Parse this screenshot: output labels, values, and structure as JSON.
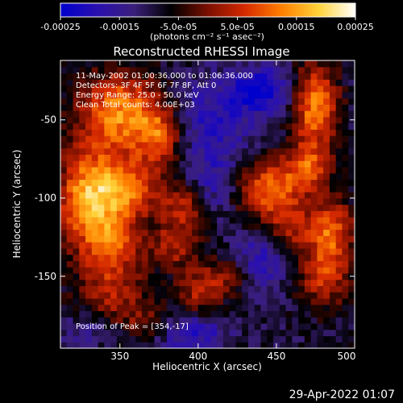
{
  "colorbar": {
    "ticks": [
      "-0.00025",
      "-0.00015",
      "-5.0e-05",
      "5.0e-05",
      "0.00015",
      "0.00025"
    ],
    "unit_label": "(photons cm⁻² s⁻¹ asec⁻²)",
    "range": [
      -0.00025,
      0.00025
    ],
    "colormap": [
      "#0000cc",
      "#2a10b0",
      "#3b1f7a",
      "#000000",
      "#7a0f00",
      "#d62a00",
      "#ff7f00",
      "#ffd23a",
      "#ffffff"
    ]
  },
  "chart_data": {
    "type": "heatmap",
    "title": "Reconstructed RHESSI Image",
    "xlabel": "Heliocentric X (arcsec)",
    "ylabel": "Heliocentric Y (arcsec)",
    "xlim": [
      312,
      500
    ],
    "ylim": [
      -196,
      -12
    ],
    "x_ticks": [
      "350",
      "400",
      "450",
      "500"
    ],
    "y_ticks": [
      "-50",
      "-100",
      "-150"
    ],
    "annotations": [
      "11-May-2002 01:00:36.000 to 01:06:36.000",
      "Detectors: 3F 4F 5F 6F 7F 8F, Att 0",
      "Energy Range: 25.0 - 50.0 keV",
      "Clean     Total counts: 4.00E+03"
    ],
    "peak_text": "Position of Peak = [354,-17]",
    "peak": [
      354,
      -17
    ],
    "grid": false,
    "sources": [
      {
        "x": 330,
        "y": -100,
        "v": 0.00024,
        "sx": 14,
        "sy": 22
      },
      {
        "x": 350,
        "y": -45,
        "v": 0.00022,
        "sx": 18,
        "sy": 18
      },
      {
        "x": 355,
        "y": -95,
        "v": 0.00018,
        "sx": 14,
        "sy": 14
      },
      {
        "x": 375,
        "y": -60,
        "v": 0.00016,
        "sx": 10,
        "sy": 14
      },
      {
        "x": 345,
        "y": -160,
        "v": 0.00012,
        "sx": 16,
        "sy": 14
      },
      {
        "x": 345,
        "y": -130,
        "v": 0.00015,
        "sx": 12,
        "sy": 12
      },
      {
        "x": 390,
        "y": -105,
        "v": 0.00013,
        "sx": 10,
        "sy": 10
      },
      {
        "x": 385,
        "y": -130,
        "v": 0.00012,
        "sx": 12,
        "sy": 10
      },
      {
        "x": 445,
        "y": -95,
        "v": 0.0002,
        "sx": 14,
        "sy": 14
      },
      {
        "x": 475,
        "y": -40,
        "v": 0.00022,
        "sx": 10,
        "sy": 18
      },
      {
        "x": 470,
        "y": -80,
        "v": 0.00016,
        "sx": 10,
        "sy": 12
      },
      {
        "x": 485,
        "y": -120,
        "v": 0.00018,
        "sx": 10,
        "sy": 14
      },
      {
        "x": 480,
        "y": -150,
        "v": 0.00014,
        "sx": 12,
        "sy": 14
      },
      {
        "x": 420,
        "y": -150,
        "v": 0.0001,
        "sx": 10,
        "sy": 10
      },
      {
        "x": 400,
        "y": -160,
        "v": 0.00012,
        "sx": 10,
        "sy": 12
      },
      {
        "x": 460,
        "y": -120,
        "v": 0.00011,
        "sx": 10,
        "sy": 10
      },
      {
        "x": 370,
        "y": -180,
        "v": 9e-05,
        "sx": 12,
        "sy": 8
      },
      {
        "x": 410,
        "y": -50,
        "v": -0.0001,
        "sx": 20,
        "sy": 18
      },
      {
        "x": 440,
        "y": -30,
        "v": -0.00015,
        "sx": 14,
        "sy": 10
      },
      {
        "x": 410,
        "y": -90,
        "v": -8e-05,
        "sx": 12,
        "sy": 14
      },
      {
        "x": 440,
        "y": -140,
        "v": -0.0001,
        "sx": 14,
        "sy": 14
      },
      {
        "x": 395,
        "y": -185,
        "v": -0.00012,
        "sx": 16,
        "sy": 10
      },
      {
        "x": 330,
        "y": -185,
        "v": -6e-05,
        "sx": 12,
        "sy": 8
      }
    ]
  },
  "footer": {
    "timestamp": "29-Apr-2022 01:07"
  }
}
